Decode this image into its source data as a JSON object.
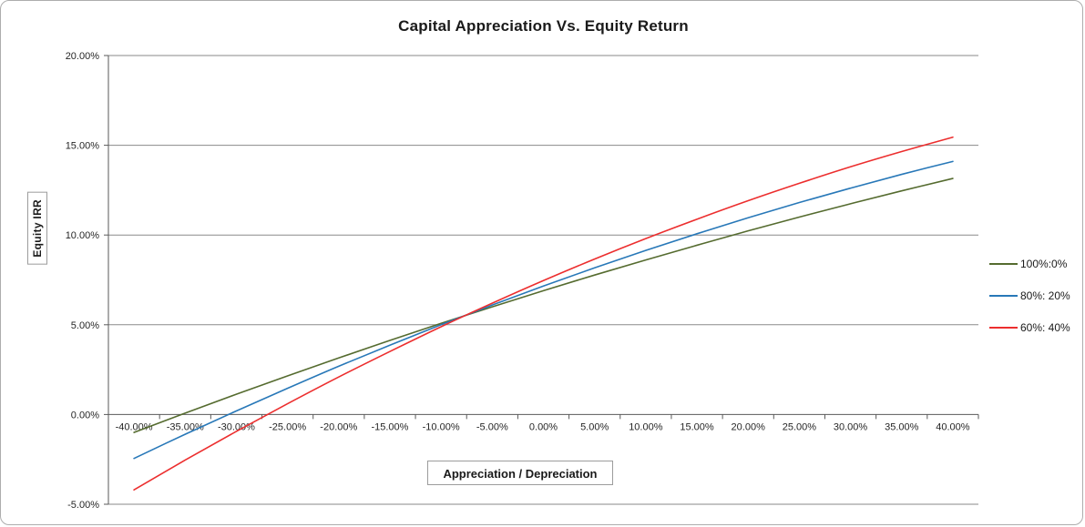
{
  "window": {
    "background": "#ffffff",
    "border_color": "#adadad"
  },
  "colors": {
    "gridline": "#8a8a8a",
    "axis": "#5a5a5a",
    "tick_text": "#262626",
    "title_text": "#1a1a1a",
    "label_box_border": "#9c9c9c"
  },
  "chart_data": {
    "type": "line",
    "title": "Capital Appreciation Vs. Equity Return",
    "xlabel": "Appreciation / Depreciation",
    "ylabel": "Equity IRR",
    "xlim": [
      -40,
      40
    ],
    "ylim": [
      -5,
      20
    ],
    "grid": "horizontal",
    "legend_position": "right",
    "x": [
      -40,
      -35,
      -30,
      -25,
      -20,
      -15,
      -10,
      -5,
      0,
      5,
      10,
      15,
      20,
      25,
      30,
      35,
      40
    ],
    "x_tick_labels": [
      "-40.00%",
      "-35.00%",
      "-30.00%",
      "-25.00%",
      "-20.00%",
      "-15.00%",
      "-10.00%",
      "-5.00%",
      "0.00%",
      "5.00%",
      "10.00%",
      "15.00%",
      "20.00%",
      "25.00%",
      "30.00%",
      "35.00%",
      "40.00%"
    ],
    "y_ticks": [
      20,
      15,
      10,
      5,
      0,
      -5
    ],
    "y_tick_labels": [
      "20.00%",
      "15.00%",
      "10.00%",
      "5.00%",
      "0.00%",
      "-5.00%"
    ],
    "series": [
      {
        "name": "100%:0%",
        "color": "#556b2f",
        "values": [
          -1.0,
          0.08,
          1.13,
          2.15,
          3.15,
          4.13,
          5.08,
          6.0,
          6.9,
          7.77,
          8.61,
          9.43,
          10.23,
          11.0,
          11.74,
          12.46,
          13.15
        ]
      },
      {
        "name": "80%: 20%",
        "color": "#2878b8",
        "values": [
          -2.45,
          -1.1,
          0.2,
          1.46,
          2.69,
          3.86,
          5.0,
          6.1,
          7.16,
          8.17,
          9.14,
          10.07,
          10.96,
          11.81,
          12.61,
          13.38,
          14.1
        ]
      },
      {
        "name": "60%: 40%",
        "color": "#ec2e2e",
        "values": [
          -4.2,
          -2.54,
          -0.94,
          0.6,
          2.09,
          3.51,
          4.89,
          6.2,
          7.46,
          8.66,
          9.8,
          10.88,
          11.91,
          12.88,
          13.8,
          14.65,
          15.45
        ]
      }
    ]
  }
}
